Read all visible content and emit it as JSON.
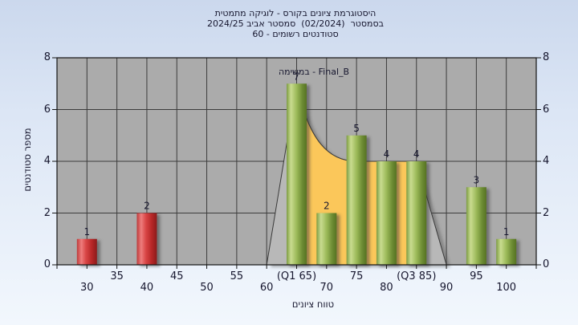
{
  "title": {
    "line1": "היסטוגרמת ציונים בקורס - לוגיקה מתמטית",
    "line2": "בסמסטר  (02/2024)  סמסטר אביב 2024/25",
    "line3": "סטודנטים רשומים - 60"
  },
  "annotation": {
    "label": "במשימה - Final_B"
  },
  "axes": {
    "x_title": "טווח ציונים",
    "y_title": "מספר סטודנטים"
  },
  "page": {
    "bg_top": "#cbd8ed",
    "bg_bottom": "#f2f7fd"
  },
  "chart_data": {
    "type": "bar",
    "title": "היסטוגרמת ציונים בקורס - לוגיקה מתמטית בסמסטר 02/2024 (סמסטר אביב 2024/25), סטודנטים רשומים - 60",
    "xlabel": "טווח ציונים",
    "ylabel": "מספר סטודנטים",
    "xlim": [
      25,
      105
    ],
    "ylim": [
      0,
      8
    ],
    "grid": true,
    "legend": false,
    "y_ticks": [
      0,
      2,
      4,
      6,
      8
    ],
    "x_ticks": [
      30,
      35,
      40,
      45,
      50,
      55,
      60,
      65,
      70,
      75,
      80,
      85,
      90,
      95,
      100
    ],
    "x_tick_labels": [
      "30",
      "35",
      "40",
      "45",
      "50",
      "55",
      "60",
      "(Q1 65)",
      "70",
      "75",
      "80",
      "(Q3 85)",
      "90",
      "95",
      "100"
    ],
    "bars": [
      {
        "x": 30,
        "value": 1,
        "color": "red"
      },
      {
        "x": 40,
        "value": 2,
        "color": "red"
      },
      {
        "x": 65,
        "value": 7,
        "color": "green"
      },
      {
        "x": 70,
        "value": 2,
        "color": "green"
      },
      {
        "x": 75,
        "value": 5,
        "color": "green"
      },
      {
        "x": 80,
        "value": 4,
        "color": "green"
      },
      {
        "x": 85,
        "value": 4,
        "color": "green"
      },
      {
        "x": 95,
        "value": 3,
        "color": "green"
      },
      {
        "x": 100,
        "value": 1,
        "color": "green"
      }
    ],
    "area_series": {
      "name": "Final_B",
      "points": [
        {
          "x": 60,
          "y": 0
        },
        {
          "x": 65,
          "y": 7
        },
        {
          "x": 75,
          "y": 4,
          "curve": "steep"
        },
        {
          "x": 80,
          "y": 4
        },
        {
          "x": 85,
          "y": 4
        },
        {
          "x": 90,
          "y": 0
        }
      ],
      "overlay_range": [
        65,
        85
      ]
    },
    "colors": {
      "plot_bg": "#ababab",
      "grid": "#3c3c3c",
      "axis": "#141414",
      "text": "#16162e",
      "area_fill": "#fbc75a",
      "area_back_fill": "#b8b8b8",
      "area_outline": "#3a3a3a",
      "red_stops": [
        [
          "0%",
          "#bd3a3a"
        ],
        [
          "22%",
          "#ee7d7d"
        ],
        [
          "45%",
          "#d94646"
        ],
        [
          "75%",
          "#b52626"
        ],
        [
          "100%",
          "#8c1b1b"
        ]
      ],
      "green_stops": [
        [
          "0%",
          "#7d9c43"
        ],
        [
          "22%",
          "#c9dc90"
        ],
        [
          "50%",
          "#9cba59"
        ],
        [
          "78%",
          "#6d8c34"
        ],
        [
          "100%",
          "#567322"
        ]
      ]
    }
  }
}
